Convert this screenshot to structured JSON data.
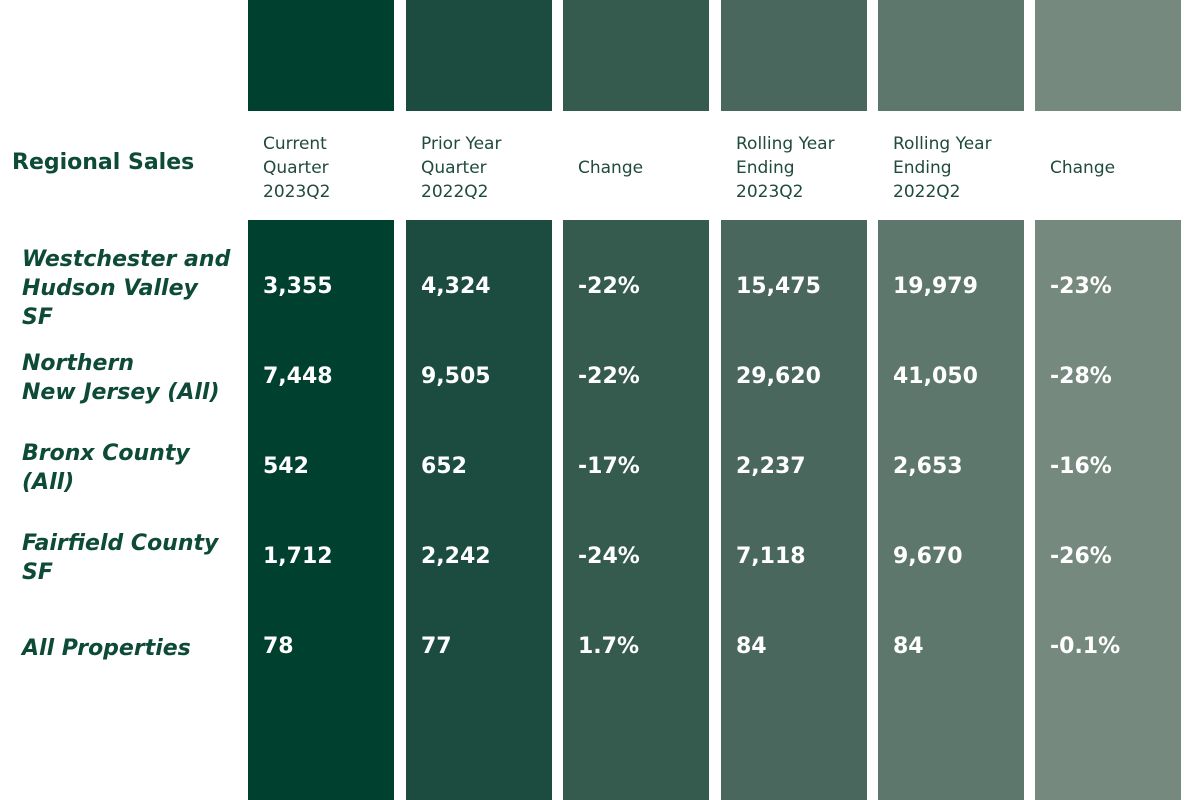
{
  "chart_data": {
    "type": "table",
    "title": "Regional Sales",
    "columns": [
      {
        "label": "Current\nQuarter\n2023Q2",
        "color": "#00402e"
      },
      {
        "label": "Prior Year\nQuarter\n2022Q2",
        "color": "#1b4c3f"
      },
      {
        "label": "Change",
        "color": "#355a4e"
      },
      {
        "label": "Rolling Year\nEnding\n2023Q2",
        "color": "#4a675d"
      },
      {
        "label": "Rolling Year\nEnding\n2022Q2",
        "color": "#5d776d"
      },
      {
        "label": "Change",
        "color": "#75897f"
      }
    ],
    "rows": [
      {
        "label": "Westchester and\nHudson Valley\nSF",
        "values": [
          "3,355",
          "4,324",
          "-22%",
          "15,475",
          "19,979",
          "-23%"
        ]
      },
      {
        "label": "Northern\nNew Jersey (All)",
        "values": [
          "7,448",
          "9,505",
          "-22%",
          "29,620",
          "41,050",
          "-28%"
        ]
      },
      {
        "label": "Bronx County\n(All)",
        "values": [
          "542",
          "652",
          "-17%",
          "2,237",
          "2,653",
          "-16%"
        ]
      },
      {
        "label": "Fairfield County\nSF",
        "values": [
          "1,712",
          "2,242",
          "-24%",
          "7,118",
          "9,670",
          "-26%"
        ]
      },
      {
        "label": "All Properties",
        "values": [
          "78",
          "77",
          "1.7%",
          "84",
          "84",
          "-0.1%"
        ]
      }
    ]
  }
}
